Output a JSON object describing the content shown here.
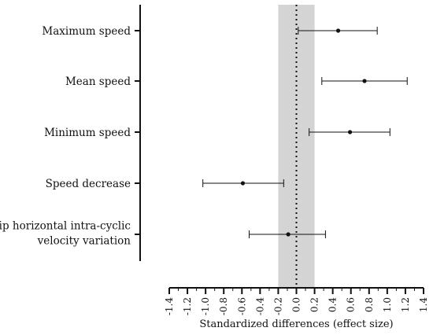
{
  "chart_data": {
    "type": "forest",
    "categories": [
      [
        "Maximum speed"
      ],
      [
        "Mean speed"
      ],
      [
        "Minimum speed"
      ],
      [
        "Speed decrease"
      ],
      [
        "Hip horizontal intra-cyclic",
        "velocity variation"
      ]
    ],
    "points": [
      {
        "estimate": 0.46,
        "ci_low": 0.02,
        "ci_high": 0.89
      },
      {
        "estimate": 0.75,
        "ci_low": 0.28,
        "ci_high": 1.22
      },
      {
        "estimate": 0.59,
        "ci_low": 0.14,
        "ci_high": 1.03
      },
      {
        "estimate": -0.59,
        "ci_low": -1.03,
        "ci_high": -0.14
      },
      {
        "estimate": -0.09,
        "ci_low": -0.52,
        "ci_high": 0.32
      }
    ],
    "x_ticks": [
      "-1.4",
      "-1.2",
      "-1.0",
      "-0.8",
      "-0.6",
      "-0.4",
      "-0.2",
      "0.0",
      "0.2",
      "0.4",
      "0.6",
      "0.8",
      "1.0",
      "1.2",
      "1.4"
    ],
    "xlim": [
      -1.4,
      1.4
    ],
    "xlabel": "Standardized differences (effect size)",
    "shaded_band": [
      -0.2,
      0.2
    ],
    "reference_line": 0.0,
    "colors": {
      "band": "#d4d4d4",
      "ink": "#111111"
    }
  }
}
